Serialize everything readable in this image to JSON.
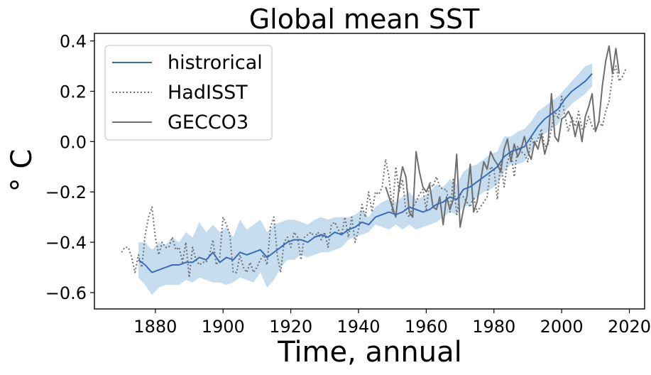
{
  "chart_data": {
    "type": "line",
    "title": "Global mean SST",
    "xlabel": "Time, annual",
    "ylabel": "° C",
    "xlim": [
      1862,
      2024.5
    ],
    "ylim": [
      -0.665,
      0.43
    ],
    "xticks": [
      1880,
      1900,
      1920,
      1940,
      1960,
      1980,
      2000,
      2020
    ],
    "xtick_labels": [
      "1880",
      "1900",
      "1920",
      "1940",
      "1960",
      "1980",
      "2000",
      "2020"
    ],
    "yticks": [
      -0.6,
      -0.4,
      -0.2,
      0.0,
      0.2,
      0.4
    ],
    "ytick_labels": [
      "−0.6",
      "−0.4",
      "−0.2",
      "0.0",
      "0.2",
      "0.4"
    ],
    "legend": {
      "location": "upper left",
      "entries": [
        {
          "label": "histrorical",
          "style": "solid",
          "color": "#3b6bb5"
        },
        {
          "label": "HadISST",
          "style": "dotted",
          "color": "#6e6e6e"
        },
        {
          "label": "GECCO3",
          "style": "solid",
          "color": "#6e6e6e"
        }
      ]
    },
    "colors": {
      "historical": "#3b6bb5",
      "band": "#b7d5ea",
      "hadisst": "#6e6e6e",
      "gecco3": "#6e6e6e"
    },
    "series": [
      {
        "name": "histrorical",
        "x_start": 1875,
        "x_step": 2,
        "values": [
          -0.47,
          -0.49,
          -0.52,
          -0.51,
          -0.5,
          -0.49,
          -0.49,
          -0.48,
          -0.48,
          -0.46,
          -0.47,
          -0.44,
          -0.48,
          -0.46,
          -0.47,
          -0.44,
          -0.45,
          -0.44,
          -0.43,
          -0.46,
          -0.44,
          -0.42,
          -0.4,
          -0.39,
          -0.39,
          -0.4,
          -0.38,
          -0.37,
          -0.38,
          -0.36,
          -0.37,
          -0.35,
          -0.34,
          -0.32,
          -0.33,
          -0.3,
          -0.29,
          -0.28,
          -0.29,
          -0.28,
          -0.26,
          -0.27,
          -0.28,
          -0.27,
          -0.25,
          -0.24,
          -0.22,
          -0.23,
          -0.19,
          -0.18,
          -0.16,
          -0.14,
          -0.12,
          -0.1,
          -0.06,
          -0.04,
          -0.03,
          -0.02,
          0.02,
          0.06,
          0.09,
          0.11,
          0.13,
          0.17,
          0.2,
          0.22,
          0.24,
          0.27
        ],
        "band_upper": [
          -0.4,
          -0.4,
          -0.43,
          -0.4,
          -0.41,
          -0.38,
          -0.4,
          -0.36,
          -0.38,
          -0.32,
          -0.36,
          -0.33,
          -0.36,
          -0.34,
          -0.38,
          -0.31,
          -0.35,
          -0.33,
          -0.31,
          -0.36,
          -0.33,
          -0.32,
          -0.31,
          -0.31,
          -0.32,
          -0.33,
          -0.31,
          -0.3,
          -0.31,
          -0.3,
          -0.3,
          -0.3,
          -0.29,
          -0.27,
          -0.3,
          -0.26,
          -0.24,
          -0.23,
          -0.24,
          -0.22,
          -0.2,
          -0.23,
          -0.22,
          -0.2,
          -0.17,
          -0.18,
          -0.15,
          -0.17,
          -0.12,
          -0.1,
          -0.09,
          -0.07,
          -0.05,
          -0.04,
          0.02,
          0.02,
          0.04,
          0.05,
          0.08,
          0.12,
          0.14,
          0.16,
          0.18,
          0.21,
          0.24,
          0.27,
          0.3,
          0.31
        ],
        "band_lower": [
          -0.54,
          -0.57,
          -0.61,
          -0.58,
          -0.57,
          -0.57,
          -0.57,
          -0.55,
          -0.56,
          -0.54,
          -0.55,
          -0.56,
          -0.56,
          -0.57,
          -0.56,
          -0.54,
          -0.55,
          -0.56,
          -0.52,
          -0.58,
          -0.55,
          -0.5,
          -0.47,
          -0.47,
          -0.45,
          -0.46,
          -0.45,
          -0.44,
          -0.44,
          -0.43,
          -0.42,
          -0.39,
          -0.38,
          -0.37,
          -0.36,
          -0.33,
          -0.34,
          -0.35,
          -0.33,
          -0.35,
          -0.33,
          -0.35,
          -0.34,
          -0.33,
          -0.32,
          -0.3,
          -0.28,
          -0.29,
          -0.26,
          -0.25,
          -0.22,
          -0.2,
          -0.19,
          -0.17,
          -0.12,
          -0.09,
          -0.09,
          -0.08,
          -0.04,
          0.01,
          0.03,
          0.05,
          0.07,
          0.12,
          0.15,
          0.17,
          0.19,
          0.22
        ]
      },
      {
        "name": "HadISST",
        "x_start": 1870,
        "x_step": 1,
        "values": [
          -0.44,
          -0.42,
          -0.42,
          -0.46,
          -0.52,
          -0.45,
          -0.5,
          -0.37,
          -0.3,
          -0.26,
          -0.38,
          -0.45,
          -0.4,
          -0.42,
          -0.42,
          -0.38,
          -0.43,
          -0.42,
          -0.48,
          -0.4,
          -0.54,
          -0.42,
          -0.47,
          -0.49,
          -0.48,
          -0.48,
          -0.45,
          -0.39,
          -0.49,
          -0.46,
          -0.3,
          -0.33,
          -0.37,
          -0.52,
          -0.52,
          -0.45,
          -0.5,
          -0.52,
          -0.48,
          -0.52,
          -0.5,
          -0.47,
          -0.45,
          -0.49,
          -0.34,
          -0.3,
          -0.45,
          -0.52,
          -0.4,
          -0.38,
          -0.42,
          -0.36,
          -0.38,
          -0.47,
          -0.38,
          -0.37,
          -0.36,
          -0.38,
          -0.36,
          -0.39,
          -0.36,
          -0.42,
          -0.33,
          -0.32,
          -0.35,
          -0.37,
          -0.3,
          -0.38,
          -0.3,
          -0.4,
          -0.35,
          -0.25,
          -0.3,
          -0.2,
          -0.28,
          -0.2,
          -0.21,
          -0.18,
          -0.07,
          -0.14,
          -0.28,
          -0.1,
          -0.2,
          -0.15,
          -0.28,
          -0.3,
          -0.26,
          -0.24,
          -0.21,
          -0.19,
          -0.27,
          -0.16,
          -0.18,
          -0.14,
          -0.18,
          -0.19,
          -0.19,
          -0.28,
          -0.15,
          -0.29,
          -0.21,
          -0.22,
          -0.24,
          -0.26,
          -0.22,
          -0.28,
          -0.26,
          -0.24,
          -0.22,
          -0.1,
          -0.11,
          -0.23,
          -0.08,
          -0.18,
          -0.08,
          -0.04,
          -0.14,
          -0.02,
          -0.04,
          -0.05,
          -0.08,
          0.02,
          -0.02,
          0.01,
          0.05,
          -0.02,
          -0.01,
          0.05,
          0.12,
          0.09,
          0.18,
          0.1,
          0.04,
          0.1,
          0.06,
          0.12,
          0.05,
          0.06,
          0.1,
          0.06,
          0.04,
          0.08,
          0.06,
          0.12,
          0.16,
          0.26,
          0.3,
          0.24,
          0.26,
          0.29
        ]
      },
      {
        "name": "GECCO3",
        "x_start": 1948,
        "x_step": 1,
        "values": [
          -0.18,
          -0.22,
          -0.26,
          -0.3,
          -0.18,
          -0.1,
          -0.14,
          -0.28,
          -0.3,
          -0.04,
          -0.12,
          -0.18,
          -0.2,
          -0.17,
          -0.26,
          -0.27,
          -0.22,
          -0.33,
          -0.22,
          -0.27,
          -0.23,
          -0.05,
          -0.34,
          -0.27,
          -0.22,
          -0.09,
          -0.28,
          -0.24,
          -0.16,
          -0.08,
          -0.11,
          -0.04,
          -0.07,
          -0.09,
          -0.12,
          -0.03,
          0.01,
          -0.08,
          -0.01,
          -0.06,
          -0.03,
          0.02,
          -0.04,
          -0.07,
          0.0,
          -0.03,
          0.03,
          -0.05,
          0.0,
          0.19,
          0.02,
          0.0,
          0.09,
          0.1,
          0.12,
          0.09,
          0.02,
          0.08,
          0.0,
          0.1,
          0.14,
          0.19,
          0.04,
          0.08,
          0.22,
          0.32,
          0.38,
          0.27,
          0.37,
          0.27
        ]
      }
    ]
  }
}
